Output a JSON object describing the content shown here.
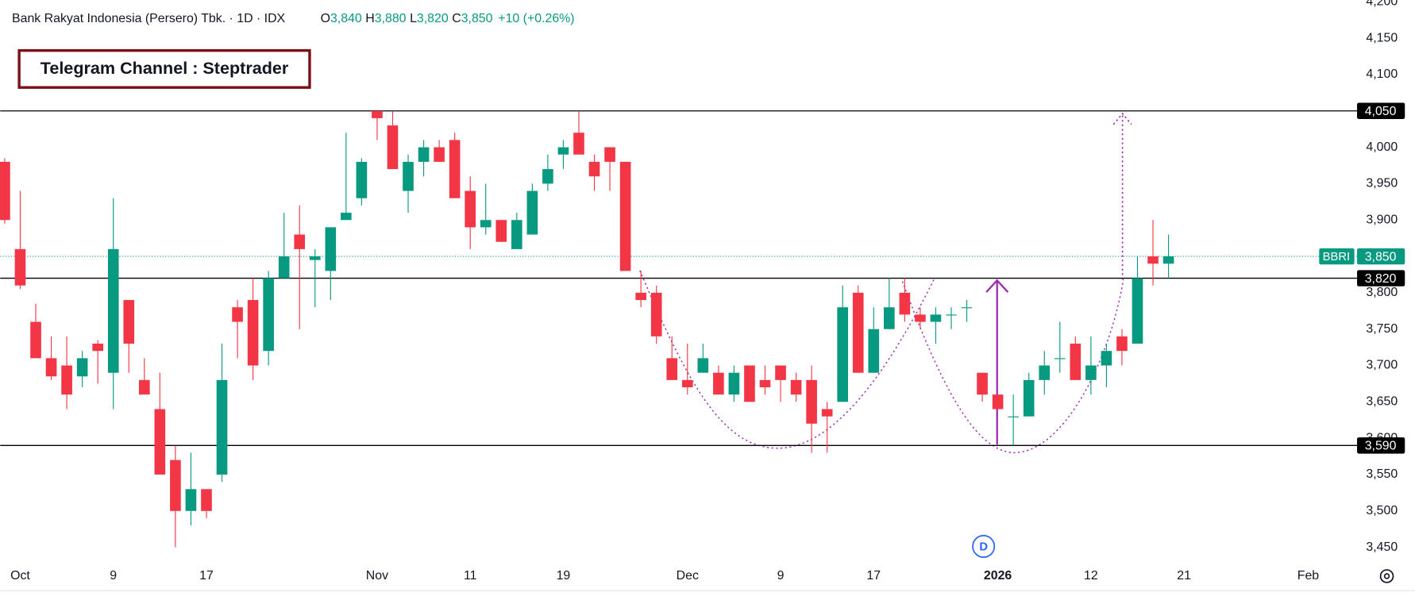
{
  "chart_data": {
    "type": "candlestick",
    "title": "Bank Rakyat Indonesia (Persero) Tbk. · 1D · IDX",
    "ohlc_legend": [
      {
        "key": "O",
        "value": "3,840"
      },
      {
        "key": "H",
        "value": "3,880"
      },
      {
        "key": "L",
        "value": "3,820"
      },
      {
        "key": "C",
        "value": "3,850"
      }
    ],
    "change": "+10 (+0.26%)",
    "annotation": "Telegram Channel : Steptrader",
    "marker": "D",
    "up_color": "#089981",
    "down_color": "#f23645",
    "categories": [
      null,
      "Oct",
      null,
      null,
      null,
      null,
      null,
      "9",
      null,
      null,
      null,
      null,
      null,
      "17",
      null,
      null,
      null,
      null,
      null,
      null,
      null,
      null,
      null,
      null,
      "Nov",
      null,
      null,
      null,
      null,
      null,
      "11",
      null,
      null,
      null,
      null,
      null,
      "19",
      null,
      null,
      null,
      null,
      null,
      null,
      null,
      "Dec",
      null,
      null,
      null,
      null,
      null,
      "9",
      null,
      null,
      null,
      null,
      null,
      "17",
      null,
      null,
      null,
      null,
      null,
      null,
      null,
      "2026",
      null,
      null,
      null,
      null,
      null,
      "12",
      null,
      null,
      null,
      null,
      null,
      "21",
      null,
      null,
      null,
      null,
      null,
      null,
      null,
      "Feb"
    ],
    "open": [
      3980,
      3860,
      3760,
      3710,
      3700,
      3685,
      3730,
      3690,
      3790,
      3680,
      3640,
      3570,
      3500,
      3530,
      3550,
      3780,
      3790,
      3720,
      3820,
      3880,
      3845,
      3830,
      3900,
      3930,
      4050,
      4030,
      3940,
      3980,
      4000,
      4010,
      3940,
      3890,
      3900,
      3860,
      3880,
      3950,
      3990,
      4020,
      3980,
      4000,
      3980,
      3800,
      3800,
      3710,
      3680,
      3690,
      3690,
      3660,
      3700,
      3680,
      3700,
      3680,
      3680,
      3640,
      3650,
      3800,
      3690,
      3750,
      3800,
      3770,
      3760,
      3770,
      3780,
      3690,
      3660,
      3630,
      3630,
      3680,
      3710,
      3730,
      3680,
      3700,
      3740,
      3730,
      3850,
      3840,
      null,
      null,
      null,
      null,
      null,
      null,
      null,
      null,
      null
    ],
    "high": [
      3985,
      3940,
      3785,
      3740,
      3740,
      3720,
      3735,
      3930,
      3790,
      3710,
      3690,
      3590,
      3580,
      3530,
      3730,
      3790,
      3820,
      3830,
      3910,
      3920,
      3860,
      3890,
      4020,
      3985,
      4050,
      4050,
      3990,
      4010,
      4010,
      4020,
      3960,
      3950,
      3900,
      3910,
      3950,
      3990,
      4010,
      4050,
      3990,
      4000,
      3980,
      3830,
      3810,
      3740,
      3730,
      3730,
      3700,
      3700,
      3700,
      3700,
      3700,
      3690,
      3700,
      3650,
      3810,
      3810,
      3780,
      3820,
      3820,
      3780,
      3780,
      3780,
      3790,
      3690,
      3660,
      3660,
      3690,
      3720,
      3760,
      3740,
      3740,
      3730,
      3750,
      3850,
      3900,
      3880,
      null,
      null,
      null,
      null,
      null,
      null,
      null,
      null,
      null
    ],
    "low": [
      3895,
      3805,
      3710,
      3680,
      3640,
      3670,
      3675,
      3640,
      3690,
      3660,
      3550,
      3450,
      3480,
      3490,
      3540,
      3710,
      3680,
      3700,
      3820,
      3750,
      3780,
      3790,
      3900,
      3920,
      4010,
      3970,
      3910,
      3960,
      3980,
      3930,
      3860,
      3880,
      3870,
      3860,
      3880,
      3940,
      3970,
      3990,
      3940,
      3940,
      3830,
      3780,
      3730,
      3680,
      3660,
      3690,
      3660,
      3650,
      3650,
      3660,
      3650,
      3650,
      3580,
      3580,
      3650,
      3690,
      3690,
      3750,
      3760,
      3750,
      3730,
      3750,
      3760,
      3650,
      3640,
      3590,
      3630,
      3660,
      3690,
      3680,
      3660,
      3670,
      3700,
      3730,
      3810,
      3820,
      null,
      null,
      null,
      null,
      null,
      null,
      null,
      null,
      null
    ],
    "close": [
      3900,
      3810,
      3710,
      3685,
      3660,
      3710,
      3720,
      3860,
      3730,
      3660,
      3550,
      3500,
      3530,
      3500,
      3680,
      3760,
      3700,
      3820,
      3850,
      3860,
      3850,
      3890,
      3910,
      3980,
      4040,
      3970,
      3980,
      4000,
      3980,
      3930,
      3890,
      3900,
      3870,
      3900,
      3940,
      3970,
      4000,
      3990,
      3960,
      3980,
      3830,
      3790,
      3740,
      3680,
      3670,
      3710,
      3660,
      3690,
      3650,
      3670,
      3680,
      3660,
      3620,
      3630,
      3780,
      3690,
      3750,
      3780,
      3770,
      3760,
      3770,
      3770,
      3780,
      3660,
      3640,
      3630,
      3680,
      3700,
      3710,
      3680,
      3700,
      3720,
      3720,
      3820,
      3840,
      3850,
      null,
      null,
      null,
      null,
      null,
      null,
      null,
      null,
      null
    ],
    "ylim": [
      3450,
      4200
    ],
    "yticks": [
      {
        "value": 3450,
        "label": "3,450"
      },
      {
        "value": 3500,
        "label": "3,500"
      },
      {
        "value": 3550,
        "label": "3,550"
      },
      {
        "value": 3600,
        "label": "3,600"
      },
      {
        "value": 3650,
        "label": "3,650"
      },
      {
        "value": 3700,
        "label": "3,700"
      },
      {
        "value": 3750,
        "label": "3,750"
      },
      {
        "value": 3800,
        "label": "3,800"
      },
      {
        "value": 3850,
        "label": "3,850"
      },
      {
        "value": 3900,
        "label": "3,900"
      },
      {
        "value": 3950,
        "label": "3,950"
      },
      {
        "value": 4000,
        "label": "4,000"
      },
      {
        "value": 4050,
        "label": "4,050"
      },
      {
        "value": 4100,
        "label": "4,100"
      },
      {
        "value": 4150,
        "label": "4,150"
      },
      {
        "value": 4200,
        "label": "4,200"
      }
    ],
    "grid": false,
    "levels": [
      {
        "value": 4050,
        "label": "4,050"
      },
      {
        "value": 3820,
        "label": "3,820"
      },
      {
        "value": 3590,
        "label": "3,590"
      }
    ],
    "price_line": {
      "symbol": "BBRI",
      "value": 3850,
      "label": "3,850",
      "color": "#089981"
    }
  }
}
